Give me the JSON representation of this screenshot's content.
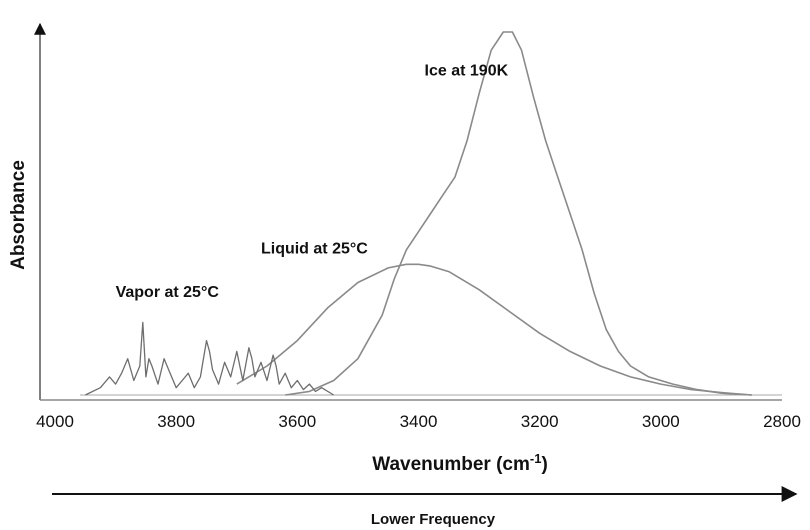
{
  "chart_data": {
    "type": "line",
    "title": "",
    "xlabel": "Wavenumber (cm",
    "xlabel_sup": "-1",
    "xlabel_close": ")",
    "ylabel": "Absorbance",
    "xlim": [
      4000,
      2800
    ],
    "ylim": [
      0,
      1.0
    ],
    "x_reversed": true,
    "xticks": [
      "4000",
      "3800",
      "3600",
      "3400",
      "3200",
      "3000",
      "2800"
    ],
    "grid": false,
    "footer_arrow_label": "Lower Frequency",
    "series": [
      {
        "name": "Ice at 190K",
        "color": "#8a8a8a",
        "x": [
          3620,
          3580,
          3540,
          3500,
          3460,
          3440,
          3420,
          3400,
          3380,
          3360,
          3340,
          3320,
          3300,
          3280,
          3260,
          3245,
          3230,
          3210,
          3190,
          3170,
          3150,
          3130,
          3110,
          3090,
          3070,
          3050,
          3020,
          2980,
          2940,
          2900,
          2850
        ],
        "y": [
          0.0,
          0.01,
          0.04,
          0.1,
          0.22,
          0.32,
          0.4,
          0.45,
          0.5,
          0.55,
          0.6,
          0.7,
          0.83,
          0.95,
          1.0,
          1.0,
          0.95,
          0.82,
          0.7,
          0.6,
          0.5,
          0.4,
          0.28,
          0.18,
          0.12,
          0.08,
          0.05,
          0.03,
          0.015,
          0.005,
          0.0
        ]
      },
      {
        "name": "Liquid at 25°C",
        "color": "#8a8a8a",
        "x": [
          3700,
          3650,
          3600,
          3550,
          3500,
          3450,
          3420,
          3400,
          3380,
          3350,
          3300,
          3250,
          3200,
          3150,
          3100,
          3050,
          3000,
          2950,
          2900,
          2850
        ],
        "y": [
          0.03,
          0.08,
          0.15,
          0.24,
          0.31,
          0.35,
          0.36,
          0.36,
          0.355,
          0.34,
          0.29,
          0.23,
          0.17,
          0.12,
          0.08,
          0.05,
          0.03,
          0.015,
          0.007,
          0.0
        ]
      },
      {
        "name": "Vapor at 25°C",
        "color": "#6e6e6e",
        "x": [
          3950,
          3925,
          3910,
          3900,
          3890,
          3880,
          3870,
          3860,
          3855,
          3850,
          3845,
          3840,
          3830,
          3820,
          3810,
          3800,
          3790,
          3780,
          3770,
          3760,
          3750,
          3745,
          3740,
          3730,
          3720,
          3710,
          3700,
          3690,
          3680,
          3675,
          3670,
          3660,
          3650,
          3640,
          3635,
          3630,
          3620,
          3610,
          3600,
          3590,
          3580,
          3570,
          3560,
          3540
        ],
        "y": [
          0.0,
          0.02,
          0.05,
          0.03,
          0.06,
          0.1,
          0.04,
          0.08,
          0.2,
          0.05,
          0.1,
          0.08,
          0.03,
          0.1,
          0.06,
          0.02,
          0.04,
          0.06,
          0.02,
          0.05,
          0.15,
          0.12,
          0.07,
          0.03,
          0.09,
          0.05,
          0.12,
          0.04,
          0.13,
          0.1,
          0.05,
          0.09,
          0.04,
          0.11,
          0.08,
          0.03,
          0.06,
          0.02,
          0.04,
          0.015,
          0.03,
          0.01,
          0.02,
          0.0
        ]
      }
    ],
    "annotations": [
      {
        "text": "Ice at 190K",
        "x": 3390,
        "y": 0.88
      },
      {
        "text": "Liquid at 25°C",
        "x": 3660,
        "y": 0.39
      },
      {
        "text": "Vapor at 25°C",
        "x": 3900,
        "y": 0.27
      }
    ]
  }
}
